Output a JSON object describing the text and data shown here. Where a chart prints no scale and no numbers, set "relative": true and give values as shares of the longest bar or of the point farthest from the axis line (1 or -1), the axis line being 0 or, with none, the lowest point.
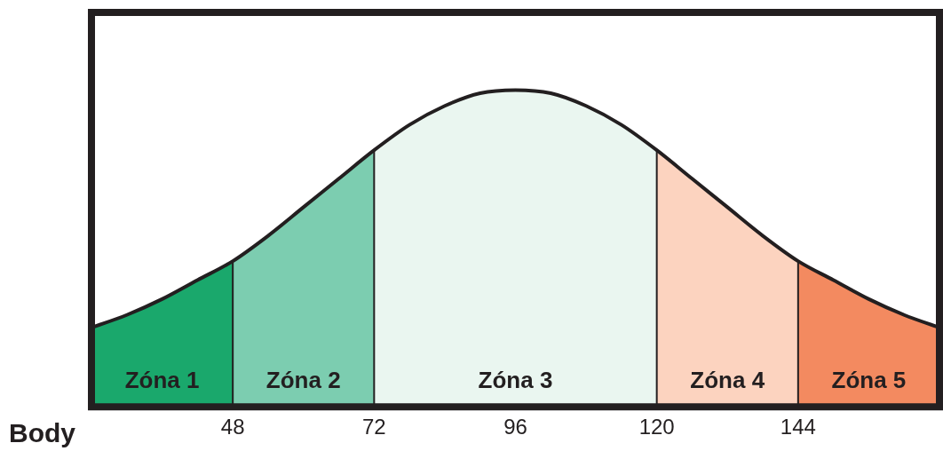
{
  "chart_data": {
    "type": "line",
    "relative": true,
    "xlabel": "Body",
    "x": [
      24,
      30,
      36,
      42,
      48,
      54,
      60,
      66,
      72,
      78,
      84,
      90,
      96,
      102,
      108,
      114,
      120,
      126,
      132,
      138,
      144,
      150,
      156,
      162,
      168
    ],
    "series": [
      {
        "color": "#231f20",
        "values": [
          0.25,
          0.29,
          0.34,
          0.4,
          0.46,
          0.54,
          0.63,
          0.72,
          0.81,
          0.89,
          0.95,
          0.99,
          1,
          0.99,
          0.95,
          0.89,
          0.81,
          0.72,
          0.63,
          0.54,
          0.46,
          0.4,
          0.34,
          0.29,
          0.25
        ]
      }
    ],
    "xlim": [
      24,
      168
    ],
    "xticks": [
      48,
      72,
      96,
      120,
      144
    ],
    "ref_lines": [
      {
        "axis": "x",
        "value": 48,
        "color": "#231f20"
      },
      {
        "axis": "x",
        "value": 72,
        "color": "#231f20"
      },
      {
        "axis": "x",
        "value": 120,
        "color": "#231f20"
      },
      {
        "axis": "x",
        "value": 144,
        "color": "#231f20"
      }
    ],
    "bands": [
      {
        "axis": "x",
        "from": 24,
        "to": 48,
        "label": "Zóna 1",
        "color": "#1aa86c"
      },
      {
        "axis": "x",
        "from": 48,
        "to": 72,
        "label": "Zóna 2",
        "color": "#7ccdb0"
      },
      {
        "axis": "x",
        "from": 72,
        "to": 120,
        "label": "Zóna 3",
        "color": "#eaf6f0"
      },
      {
        "axis": "x",
        "from": 120,
        "to": 144,
        "label": "Zóna 4",
        "color": "#fcd3bf"
      },
      {
        "axis": "x",
        "from": 144,
        "to": 168,
        "label": "Zóna 5",
        "color": "#f38a60"
      }
    ],
    "grid": false,
    "legend": false,
    "marker": "none",
    "line_style": "solid"
  }
}
